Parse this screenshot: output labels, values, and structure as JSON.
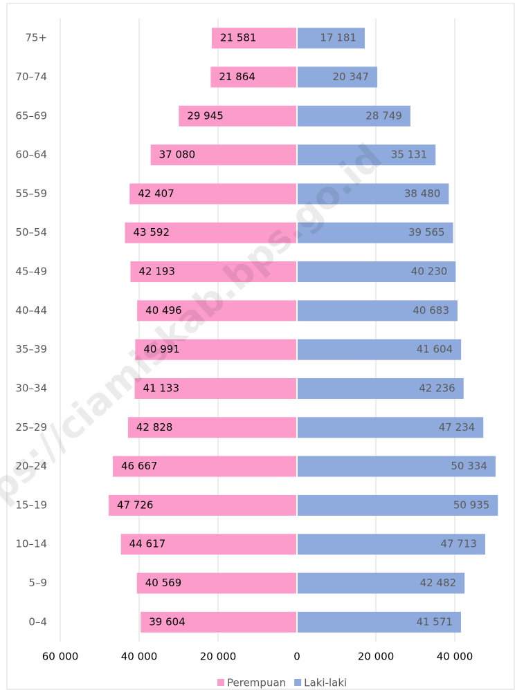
{
  "chart_data": {
    "type": "pyramid",
    "watermark": "ps://ciamiskab.bps.go.id",
    "categories": [
      "75+",
      "70–74",
      "65–69",
      "60–64",
      "55–59",
      "50–54",
      "45–49",
      "40–44",
      "35–39",
      "30–34",
      "25–29",
      "20–24",
      "15–19",
      "10–14",
      "5–9",
      "0–4"
    ],
    "series": [
      {
        "name": "Perempuan",
        "color": "#fb9ccb",
        "values": [
          -21581,
          -21864,
          -29945,
          -37080,
          -42407,
          -43592,
          -42193,
          -40496,
          -40991,
          -41133,
          -42828,
          -46667,
          -47726,
          -44617,
          -40569,
          -39604
        ],
        "value_labels": [
          "21 581",
          "21 864",
          "29 945",
          "37 080",
          "42 407",
          "43 592",
          "42 193",
          "40 496",
          "40 991",
          "41 133",
          "42 828",
          "46 667",
          "47 726",
          "44 617",
          "40 569",
          "39 604"
        ]
      },
      {
        "name": "Laki-laki",
        "color": "#8faadc",
        "values": [
          17181,
          20347,
          28749,
          35131,
          38480,
          39565,
          40230,
          40683,
          41604,
          42236,
          47234,
          50334,
          50935,
          47713,
          42482,
          41571
        ],
        "value_labels": [
          "17 181",
          "20 347",
          "28 749",
          "35 131",
          "38 480",
          "39 565",
          "40 230",
          "40 683",
          "41 604",
          "42 236",
          "47 234",
          "50 334",
          "50 935",
          "47 713",
          "42 482",
          "41 571"
        ]
      }
    ],
    "xlim": [
      -60000,
      55000
    ],
    "xticks": [
      {
        "value": -60000,
        "label": "60 000"
      },
      {
        "value": -40000,
        "label": "40 000"
      },
      {
        "value": -20000,
        "label": "20 000"
      },
      0,
      {
        "value": 20000,
        "label": "20 000"
      },
      {
        "value": 40000,
        "label": "40 000"
      }
    ],
    "grid": true,
    "legend": "bottom"
  }
}
